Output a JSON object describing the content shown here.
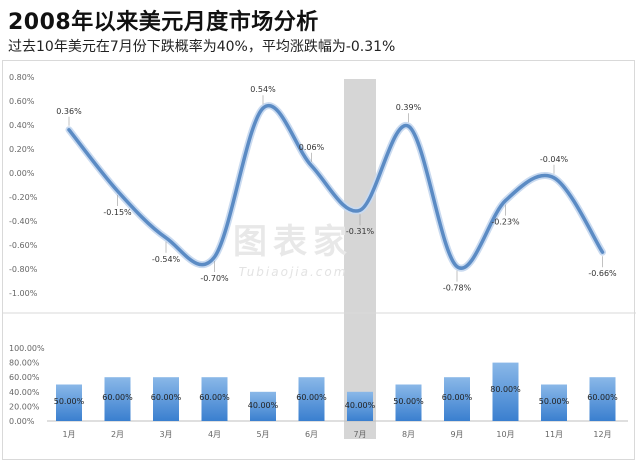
{
  "title": "2008年以来美元月度市场分析",
  "subtitle": "过去10年美元在7月份下跌概率为40%，平均涨跌幅为-0.31%",
  "watermark": {
    "main": "图表家",
    "sub": "Tubiaojia.com"
  },
  "colors": {
    "line": "#5b8bc4",
    "line_glow": "#c9daf0",
    "bar_top": "#8ab8e8",
    "bar_bottom": "#3a7fcf",
    "highlight": "#c8c8c8",
    "grid": "#e6e6e6"
  },
  "chart_data": [
    {
      "type": "line",
      "name": "monthly-average-change",
      "categories": [
        "1月",
        "2月",
        "3月",
        "4月",
        "5月",
        "6月",
        "7月",
        "8月",
        "9月",
        "10月",
        "11月",
        "12月"
      ],
      "values": [
        0.36,
        -0.15,
        -0.54,
        -0.7,
        0.54,
        0.06,
        -0.31,
        0.39,
        -0.78,
        -0.23,
        -0.04,
        -0.66
      ],
      "labels": [
        "0.36%",
        "-0.15%",
        "-0.54%",
        "-0.70%",
        "0.54%",
        "0.06%",
        "-0.31%",
        "0.39%",
        "-0.78%",
        "-0.23%",
        "-0.04%",
        "-0.66%"
      ],
      "ylim": [
        -1.0,
        0.8
      ],
      "yticks": [
        "0.80%",
        "0.60%",
        "0.40%",
        "0.20%",
        "0.00%",
        "-0.20%",
        "-0.40%",
        "-0.60%",
        "-0.80%",
        "-1.00%"
      ],
      "highlight_category": "7月",
      "grid": false
    },
    {
      "type": "bar",
      "name": "monthly-decline-probability",
      "categories": [
        "1月",
        "2月",
        "3月",
        "4月",
        "5月",
        "6月",
        "7月",
        "8月",
        "9月",
        "10月",
        "11月",
        "12月"
      ],
      "values": [
        50,
        60,
        60,
        60,
        40,
        60,
        40,
        50,
        60,
        80,
        50,
        60
      ],
      "labels": [
        "50.00%",
        "60.00%",
        "60.00%",
        "60.00%",
        "40.00%",
        "60.00%",
        "40.00%",
        "50.00%",
        "60.00%",
        "80.00%",
        "50.00%",
        "60.00%"
      ],
      "ylim": [
        0,
        100
      ],
      "yticks": [
        "100.00%",
        "80.00%",
        "60.00%",
        "40.00%",
        "20.00%",
        "0.00%"
      ],
      "highlight_category": "7月",
      "grid": false
    }
  ]
}
